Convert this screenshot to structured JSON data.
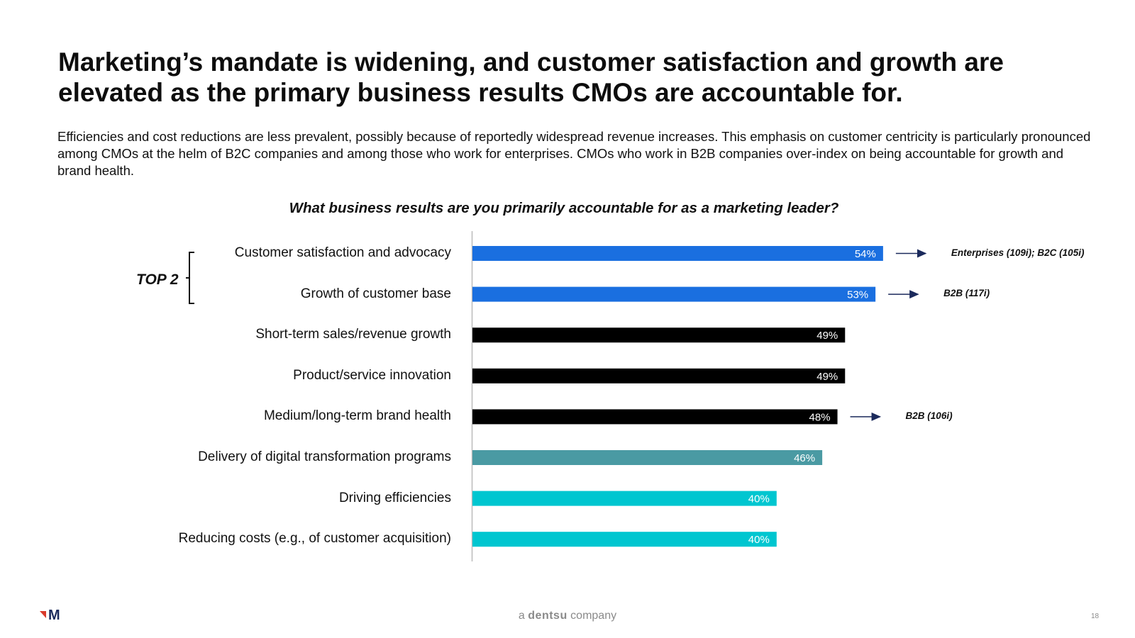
{
  "slide": {
    "title": "Marketing’s mandate is widening, and customer satisfaction and growth are elevated as the primary business results CMOs are accountable for.",
    "subtitle": "Efficiencies and cost reductions are less prevalent, possibly because of reportedly widespread revenue increases. This emphasis on customer centricity is particularly pronounced among CMOs at the helm of B2C companies and among those who work for enterprises. CMOs who work in B2B companies over-index on being accountable for growth and brand health.",
    "question": "What business results are you primarily accountable for as a marketing leader?",
    "top2_label": "TOP 2",
    "footer_prefix": "a",
    "footer_brand": "dentsu",
    "footer_suffix": "company",
    "page_number": "18",
    "logo_letter": "M"
  },
  "chart_data": {
    "type": "bar",
    "orientation": "horizontal",
    "title": "What business results are you primarily accountable for as a marketing leader?",
    "xlim": [
      0,
      100
    ],
    "value_suffix": "%",
    "categories": [
      "Customer satisfaction and advocacy",
      "Growth of customer base",
      "Short-term sales/revenue growth",
      "Product/service innovation",
      "Medium/long-term brand health",
      "Delivery of digital transformation programs",
      "Driving efficiencies",
      "Reducing costs (e.g., of customer acquisition)"
    ],
    "values": [
      54,
      53,
      49,
      49,
      48,
      46,
      40,
      40
    ],
    "colors": [
      "#1a6fe0",
      "#1a6fe0",
      "#000000",
      "#000000",
      "#000000",
      "#4a9aa3",
      "#00c6d0",
      "#00c6d0"
    ],
    "annotations": [
      {
        "category_index": 0,
        "text": "Enterprises (109i); B2C (105i)"
      },
      {
        "category_index": 1,
        "text": "B2B (117i)"
      },
      {
        "category_index": 4,
        "text": "B2B (106i)"
      }
    ]
  },
  "colors": {
    "arrow": "#1b2a5c",
    "axis": "#bbbbbb",
    "logo_red": "#d93a2b",
    "logo_navy": "#1b2a5c"
  }
}
